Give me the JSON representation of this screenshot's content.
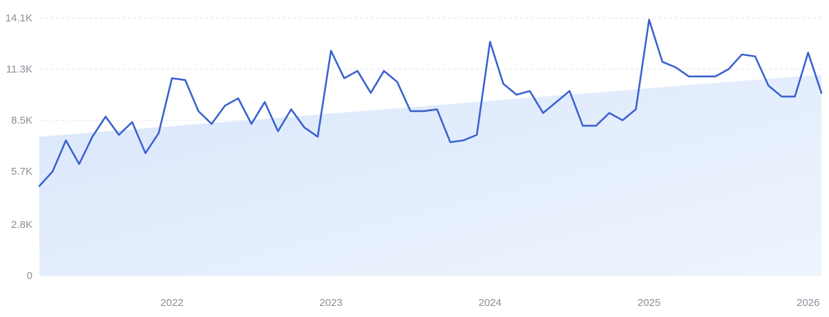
{
  "chart_data": {
    "type": "line",
    "title": "",
    "xlabel": "",
    "ylabel": "",
    "ylim": [
      0,
      14100
    ],
    "y_ticks": [
      {
        "value": 0,
        "label": "0"
      },
      {
        "value": 2800,
        "label": "2.8K"
      },
      {
        "value": 5700,
        "label": "5.7K"
      },
      {
        "value": 8500,
        "label": "8.5K"
      },
      {
        "value": 11300,
        "label": "11.3K"
      },
      {
        "value": 14100,
        "label": "14.1K"
      }
    ],
    "x_ticks": [
      {
        "value": 2022.0,
        "label": "2022"
      },
      {
        "value": 2023.0,
        "label": "2023"
      },
      {
        "value": 2024.0,
        "label": "2024"
      },
      {
        "value": 2025.0,
        "label": "2025"
      },
      {
        "value": 2026.0,
        "label": "2026"
      }
    ],
    "x_start": 2021.1667,
    "x_step_months": 1,
    "grid": true,
    "legend": "none",
    "colors": {
      "line": "#3a62cf",
      "trend_fill": "#dbe8fb",
      "grid": "#dfe3ea",
      "tick_text": "#8a8f98"
    },
    "trend": {
      "start": 7600,
      "end": 11000
    },
    "series": [
      {
        "values": [
          4900,
          5700,
          7400,
          6100,
          7600,
          8700,
          7700,
          8400,
          6700,
          7800,
          10800,
          10700,
          9000,
          8300,
          9300,
          9700,
          8300,
          9500,
          7900,
          9100,
          8100,
          7600,
          12300,
          10800,
          11200,
          10000,
          11200,
          10600,
          9000,
          9000,
          9100,
          7300,
          7400,
          7700,
          12800,
          10500,
          9900,
          10100,
          8900,
          9500,
          10100,
          8200,
          8200,
          8900,
          8500,
          9100,
          14000,
          11700,
          11400,
          10900,
          10900,
          10900,
          11300,
          12100,
          12000,
          10400,
          9800,
          9800,
          12200,
          10000
        ]
      }
    ]
  }
}
